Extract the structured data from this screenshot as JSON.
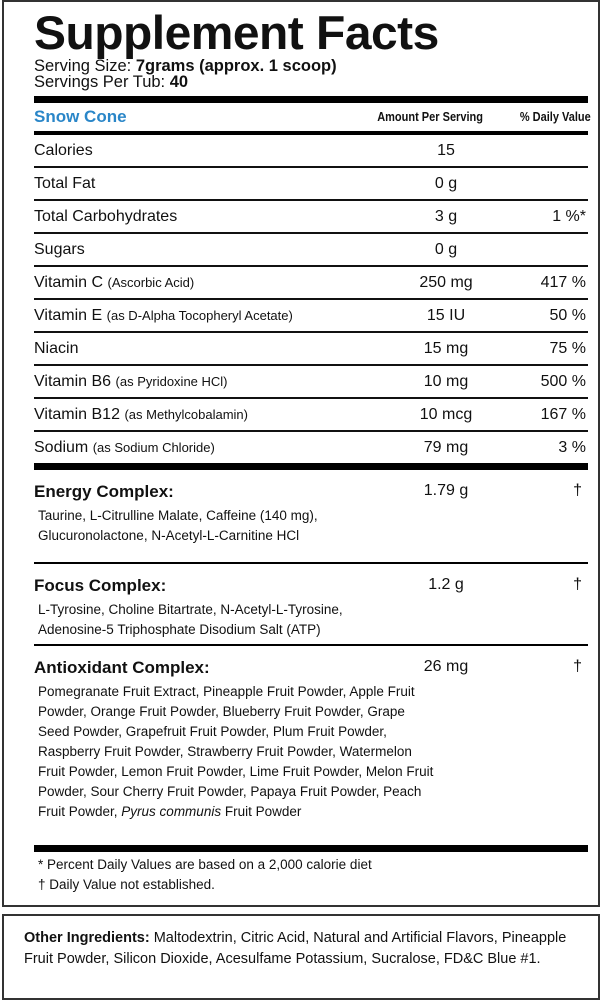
{
  "title": "Supplement Facts",
  "serving_size_label": "Serving Size:",
  "serving_size_value": "7grams (approx. 1 scoop)",
  "servings_label": "Servings Per Tub:",
  "servings_value": "40",
  "flavor": "Snow Cone",
  "col_amount": "Amount Per Serving",
  "col_dv": "% Daily Value",
  "brand_color": "#2a86c8",
  "nutrients": [
    {
      "name": "Calories",
      "note": "",
      "amount": "15",
      "dv": ""
    },
    {
      "name": "Total Fat",
      "note": "",
      "amount": "0 g",
      "dv": ""
    },
    {
      "name": "Total Carbohydrates",
      "note": "",
      "amount": "3 g",
      "dv": "1 %*"
    },
    {
      "name": "Sugars",
      "note": "",
      "amount": "0 g",
      "dv": ""
    },
    {
      "name": "Vitamin C",
      "note": "(Ascorbic Acid)",
      "amount": "250 mg",
      "dv": "417 %"
    },
    {
      "name": "Vitamin E",
      "note": "(as D-Alpha Tocopheryl Acetate)",
      "amount": "15 IU",
      "dv": "50 %"
    },
    {
      "name": "Niacin",
      "note": "",
      "amount": "15 mg",
      "dv": "75 %"
    },
    {
      "name": "Vitamin B6",
      "note": "(as Pyridoxine HCl)",
      "amount": "10 mg",
      "dv": "500 %"
    },
    {
      "name": "Vitamin B12",
      "note": "(as Methylcobalamin)",
      "amount": "10 mcg",
      "dv": "167 %"
    },
    {
      "name": "Sodium",
      "note": "(as Sodium Chloride)",
      "amount": "79 mg",
      "dv": "3 %"
    }
  ],
  "complexes": [
    {
      "name": "Energy Complex:",
      "amount": "1.79 g",
      "dv": "†",
      "ingredients": "Taurine, L-Citrulline Malate, Caffeine (140 mg), Glucuronolactone, N-Acetyl-L-Carnitine HCl"
    },
    {
      "name": "Focus Complex:",
      "amount": "1.2 g",
      "dv": "†",
      "ingredients": "L-Tyrosine, Choline Bitartrate, N-Acetyl-L-Tyrosine, Adenosine-5 Triphosphate Disodium Salt (ATP)"
    },
    {
      "name": "Antioxidant Complex:",
      "amount": "26 mg",
      "dv": "†",
      "ingredients": "Pomegranate Fruit Extract, Pineapple Fruit Powder, Apple Fruit Powder, Orange Fruit Powder, Blueberry Fruit Powder, Grape Seed Powder, Grapefruit Fruit Powder, Plum Fruit Powder, Raspberry Fruit Powder, Strawberry Fruit Powder, Watermelon Fruit Powder, Lemon Fruit Powder, Lime Fruit Powder, Melon Fruit Powder, Sour Cherry Fruit Powder, Papaya Fruit Powder, Peach Fruit Powder,",
      "ingredients_italic": "Pyrus communis",
      "ingredients_tail": "Fruit Powder"
    }
  ],
  "footnotes": [
    "* Percent Daily Values are based on a 2,000 calorie diet",
    "† Daily Value not established."
  ],
  "other_label": "Other Ingredients:",
  "other_text": "Maltodextrin, Citric Acid, Natural and Artificial Flavors, Pineapple Fruit Powder, Silicon Dioxide, Acesulfame Potassium, Sucralose, FD&C Blue #1."
}
